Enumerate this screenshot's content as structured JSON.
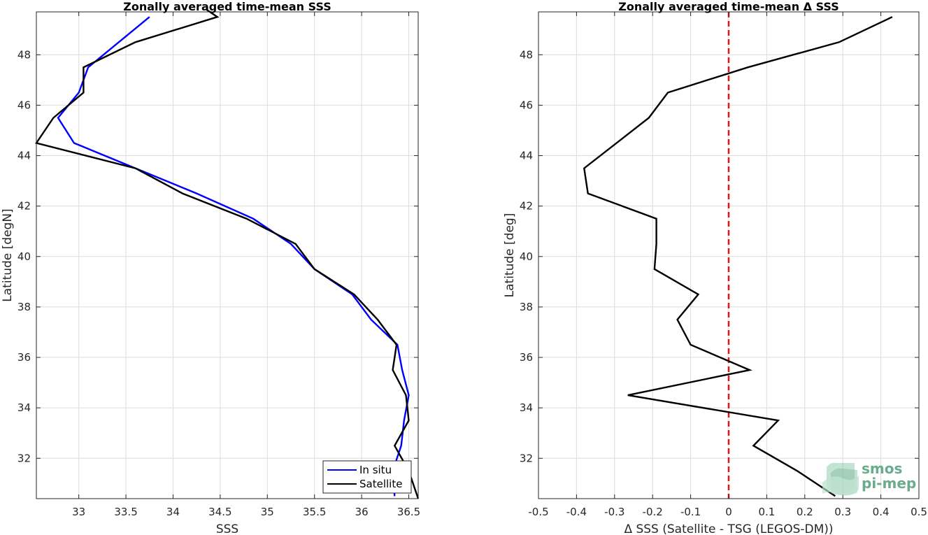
{
  "chart_data": [
    {
      "type": "line",
      "title": "Zonally averaged time-mean SSS",
      "xlabel": "SSS",
      "ylabel": "Latitude [degN]",
      "xlim": [
        32.55,
        36.6
      ],
      "ylim": [
        30.4,
        49.7
      ],
      "xticks": [
        33,
        33.5,
        34,
        34.5,
        35,
        35.5,
        36,
        36.5
      ],
      "xtick_labels": [
        "33",
        "33.5",
        "34",
        "34.5",
        "35",
        "35.5",
        "36",
        "36.5"
      ],
      "yticks": [
        32,
        34,
        36,
        38,
        40,
        42,
        44,
        46,
        48
      ],
      "ytick_labels": [
        "32",
        "34",
        "36",
        "38",
        "40",
        "42",
        "44",
        "46",
        "48"
      ],
      "grid": true,
      "legend": "bottom-right",
      "series": [
        {
          "name": "In situ",
          "color": "#0000ff",
          "points": [
            [
              33.75,
              49.5
            ],
            [
              33.1,
              47.5
            ],
            [
              33.0,
              46.5
            ],
            [
              32.78,
              45.5
            ],
            [
              32.95,
              44.5
            ],
            [
              33.6,
              43.5
            ],
            [
              34.25,
              42.5
            ],
            [
              34.85,
              41.5
            ],
            [
              35.25,
              40.5
            ],
            [
              35.5,
              39.5
            ],
            [
              35.9,
              38.5
            ],
            [
              36.1,
              37.5
            ],
            [
              36.38,
              36.5
            ],
            [
              36.43,
              35.5
            ],
            [
              36.5,
              34.5
            ],
            [
              36.45,
              33.5
            ],
            [
              36.42,
              32.5
            ],
            [
              36.33,
              31.5
            ],
            [
              36.35,
              30.5
            ]
          ]
        },
        {
          "name": "Satellite",
          "color": "#000000",
          "points": [
            [
              34.35,
              49.8
            ],
            [
              34.47,
              49.5
            ],
            [
              33.6,
              48.5
            ],
            [
              33.05,
              47.5
            ],
            [
              33.05,
              46.5
            ],
            [
              32.73,
              45.5
            ],
            [
              32.55,
              44.5
            ],
            [
              33.6,
              43.5
            ],
            [
              34.1,
              42.5
            ],
            [
              34.78,
              41.5
            ],
            [
              35.3,
              40.5
            ],
            [
              35.5,
              39.5
            ],
            [
              35.92,
              38.5
            ],
            [
              36.17,
              37.5
            ],
            [
              36.37,
              36.5
            ],
            [
              36.33,
              35.5
            ],
            [
              36.47,
              34.5
            ],
            [
              36.5,
              33.5
            ],
            [
              36.35,
              32.5
            ],
            [
              36.5,
              31.5
            ],
            [
              36.6,
              30.4
            ]
          ]
        }
      ]
    },
    {
      "type": "line",
      "title": "Zonally averaged time-mean Δ SSS",
      "xlabel": "Δ SSS (Satellite - TSG (LEGOS-DM))",
      "ylabel": "Latitude [deg]",
      "xlim": [
        -0.5,
        0.5
      ],
      "ylim": [
        30.4,
        49.7
      ],
      "xticks": [
        -0.5,
        -0.4,
        -0.3,
        -0.2,
        -0.1,
        0,
        0.1,
        0.2,
        0.3,
        0.4,
        0.5
      ],
      "xtick_labels": [
        "-0.5",
        "-0.4",
        "-0.3",
        "-0.2",
        "-0.1",
        "0",
        "0.1",
        "0.2",
        "0.3",
        "0.4",
        "0.5"
      ],
      "yticks": [
        32,
        34,
        36,
        38,
        40,
        42,
        44,
        46,
        48
      ],
      "ytick_labels": [
        "32",
        "34",
        "36",
        "38",
        "40",
        "42",
        "44",
        "46",
        "48"
      ],
      "grid": true,
      "reference_line": {
        "x": 0,
        "color": "#e8141b",
        "style": "dashed"
      },
      "series": [
        {
          "color": "#000000",
          "points": [
            [
              0.43,
              49.5
            ],
            [
              0.29,
              48.5
            ],
            [
              0.05,
              47.5
            ],
            [
              -0.16,
              46.5
            ],
            [
              -0.21,
              45.5
            ],
            [
              -0.38,
              43.5
            ],
            [
              -0.37,
              42.5
            ],
            [
              -0.19,
              41.5
            ],
            [
              -0.19,
              40.5
            ],
            [
              -0.195,
              39.5
            ],
            [
              -0.08,
              38.5
            ],
            [
              -0.135,
              37.5
            ],
            [
              -0.1,
              36.5
            ],
            [
              0.055,
              35.5
            ],
            [
              -0.265,
              34.5
            ],
            [
              0.13,
              33.5
            ],
            [
              0.065,
              32.5
            ],
            [
              0.18,
              31.5
            ],
            [
              0.28,
              30.5
            ]
          ]
        }
      ]
    }
  ],
  "logo": {
    "line1": "smos",
    "line2": "pi-mep",
    "color": "#6aab8e"
  }
}
